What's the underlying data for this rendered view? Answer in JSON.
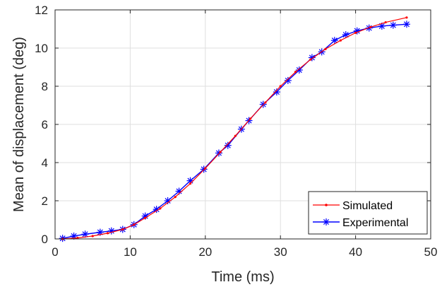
{
  "chart_data": {
    "type": "line",
    "title": "",
    "xlabel": "Time (ms)",
    "ylabel": "Mean of displacement (deg)",
    "xlim": [
      0,
      50
    ],
    "ylim": [
      0,
      12
    ],
    "xticks": [
      0,
      10,
      20,
      30,
      40,
      50
    ],
    "yticks": [
      0,
      2,
      4,
      6,
      8,
      10,
      12
    ],
    "grid": true,
    "legend_position": "bottom-right",
    "series": [
      {
        "name": "Simulated",
        "color": "#ff0000",
        "marker": "dot",
        "x": [
          1.0,
          3.0,
          5.0,
          7.0,
          9.0,
          10.5,
          12.0,
          14.0,
          16.0,
          18.0,
          20.0,
          22.0,
          24.0,
          26.0,
          28.0,
          30.0,
          32.0,
          34.0,
          36.0,
          38.0,
          40.0,
          42.0,
          44.0,
          46.8
        ],
        "values": [
          0.0,
          0.05,
          0.15,
          0.3,
          0.5,
          0.75,
          1.1,
          1.6,
          2.2,
          2.9,
          3.7,
          4.55,
          5.4,
          6.3,
          7.15,
          8.0,
          8.75,
          9.4,
          9.95,
          10.4,
          10.8,
          11.1,
          11.35,
          11.6
        ]
      },
      {
        "name": "Experimental",
        "color": "#0000ff",
        "marker": "asterisk",
        "x": [
          1.0,
          2.5,
          4.0,
          6.0,
          7.5,
          9.0,
          10.5,
          12.0,
          13.5,
          15.0,
          16.5,
          18.0,
          19.8,
          21.8,
          23.0,
          24.8,
          25.8,
          27.7,
          29.5,
          31.0,
          32.5,
          34.2,
          35.5,
          37.2,
          38.7,
          40.2,
          41.8,
          43.5,
          45.0,
          46.8
        ],
        "values": [
          0.03,
          0.15,
          0.25,
          0.35,
          0.42,
          0.5,
          0.75,
          1.2,
          1.55,
          2.0,
          2.5,
          3.05,
          3.65,
          4.5,
          4.9,
          5.75,
          6.2,
          7.05,
          7.7,
          8.3,
          8.85,
          9.5,
          9.8,
          10.4,
          10.7,
          10.9,
          11.05,
          11.15,
          11.2,
          11.25
        ]
      }
    ]
  }
}
